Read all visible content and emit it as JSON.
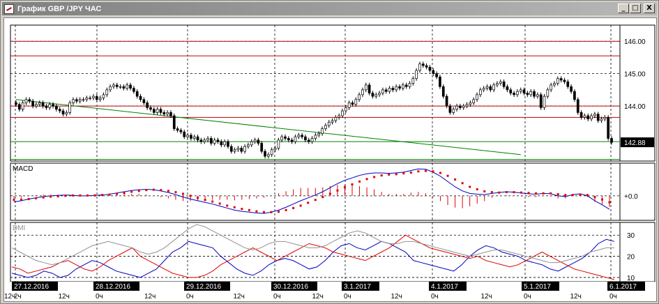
{
  "window": {
    "title": "График GBP /JPY ЧАС",
    "minimize_glyph": "_",
    "maximize_glyph": "□",
    "close_glyph": "X"
  },
  "colors": {
    "bull": "#ffffff",
    "bear": "#000000",
    "hline_red": "#c00000",
    "hline_green": "#008000",
    "trend_green": "#008000",
    "macd_line": "#0000c0",
    "macd_signal": "#e00000",
    "dmi_plus": "#0000c0",
    "dmi_minus": "#e00000",
    "adx": "#909090"
  },
  "chart_data": [
    {
      "type": "candlestick",
      "title": "",
      "price_axis_labels": [
        "146.00",
        "145.00",
        "144.00"
      ],
      "last_price": "142.88",
      "ylim": [
        142.3,
        146.5
      ],
      "red_levels": [
        146.0,
        145.55,
        144.0,
        143.65
      ],
      "green_levels": [
        142.9,
        142.35
      ],
      "trend_line": {
        "from": [
          0,
          144.2
        ],
        "to": [
          150,
          142.5
        ]
      },
      "closes": [
        144.05,
        143.9,
        144.1,
        144.2,
        144.15,
        144.0,
        144.05,
        144.1,
        144.0,
        143.95,
        144.05,
        144.0,
        143.9,
        143.85,
        143.75,
        143.8,
        144.1,
        144.2,
        144.15,
        144.2,
        144.2,
        144.25,
        144.25,
        144.3,
        144.2,
        144.25,
        144.35,
        144.5,
        144.6,
        144.65,
        144.6,
        144.6,
        144.55,
        144.65,
        144.55,
        144.45,
        144.3,
        144.2,
        144.1,
        143.95,
        143.9,
        143.8,
        143.9,
        143.8,
        143.75,
        143.8,
        143.7,
        143.3,
        143.25,
        143.2,
        143.05,
        143.1,
        143.0,
        143.05,
        142.95,
        142.9,
        142.95,
        143.0,
        142.85,
        142.95,
        142.9,
        142.8,
        142.9,
        142.75,
        142.6,
        142.65,
        142.7,
        142.6,
        142.75,
        142.8,
        142.9,
        142.95,
        142.85,
        142.6,
        142.45,
        142.5,
        142.65,
        142.7,
        142.95,
        143.05,
        143.0,
        142.95,
        142.9,
        143.05,
        143.1,
        143.05,
        142.95,
        142.9,
        143.0,
        143.1,
        143.15,
        143.3,
        143.4,
        143.5,
        143.55,
        143.65,
        143.7,
        143.85,
        143.95,
        144.1,
        144.05,
        144.2,
        144.35,
        144.5,
        144.65,
        144.4,
        144.3,
        144.35,
        144.4,
        144.5,
        144.45,
        144.55,
        144.5,
        144.6,
        144.55,
        144.65,
        144.6,
        144.7,
        144.85,
        145.1,
        145.3,
        145.25,
        145.2,
        145.1,
        145.0,
        144.9,
        144.6,
        144.3,
        144.0,
        143.8,
        143.9,
        144.0,
        143.95,
        144.0,
        144.05,
        144.1,
        144.2,
        144.35,
        144.5,
        144.55,
        144.6,
        144.5,
        144.65,
        144.7,
        144.75,
        144.6,
        144.5,
        144.4,
        144.35,
        144.45,
        144.5,
        144.4,
        144.35,
        144.45,
        144.3,
        144.35,
        143.95,
        144.3,
        144.5,
        144.65,
        144.7,
        144.85,
        144.8,
        144.75,
        144.6,
        144.45,
        144.2,
        143.8,
        143.65,
        143.7,
        143.6,
        143.7,
        143.75,
        143.55,
        143.6,
        143.65,
        143.0,
        142.88
      ]
    },
    {
      "type": "line",
      "title": "MACD",
      "zero_label": "+0.0",
      "series": [
        {
          "values": [
            -0.15,
            -0.12,
            -0.08,
            -0.05,
            -0.02,
            0.0,
            0.01,
            0.02,
            0.01,
            0.0,
            0.0,
            0.01,
            0.02,
            0.04,
            0.07,
            0.1,
            0.13,
            0.15,
            0.16,
            0.15,
            0.12,
            0.08,
            0.03,
            -0.03,
            -0.08,
            -0.12,
            -0.16,
            -0.2,
            -0.25,
            -0.3,
            -0.35,
            -0.38,
            -0.4,
            -0.42,
            -0.43,
            -0.4,
            -0.35,
            -0.28,
            -0.2,
            -0.12,
            -0.05,
            0.02,
            0.1,
            0.2,
            0.3,
            0.38,
            0.44,
            0.5,
            0.54,
            0.56,
            0.56,
            0.55,
            0.56,
            0.58,
            0.62,
            0.66,
            0.65,
            0.58,
            0.48,
            0.35,
            0.22,
            0.12,
            0.06,
            0.04,
            0.03,
            0.06,
            0.08,
            0.1,
            0.09,
            0.07,
            0.05,
            0.04,
            0.06,
            0.05,
            0.0,
            -0.02,
            0.03,
            0.05,
            0.0,
            -0.12,
            -0.22,
            -0.33
          ]
        },
        {
          "values": [
            -0.1,
            -0.09,
            -0.08,
            -0.06,
            -0.04,
            -0.02,
            -0.01,
            0.0,
            0.01,
            0.01,
            0.01,
            0.01,
            0.02,
            0.03,
            0.05,
            0.07,
            0.1,
            0.12,
            0.14,
            0.15,
            0.14,
            0.12,
            0.09,
            0.05,
            0.0,
            -0.05,
            -0.1,
            -0.14,
            -0.19,
            -0.24,
            -0.28,
            -0.32,
            -0.35,
            -0.38,
            -0.4,
            -0.4,
            -0.39,
            -0.35,
            -0.3,
            -0.24,
            -0.17,
            -0.1,
            -0.03,
            0.05,
            0.13,
            0.21,
            0.28,
            0.35,
            0.41,
            0.46,
            0.5,
            0.52,
            0.53,
            0.55,
            0.57,
            0.6,
            0.61,
            0.6,
            0.56,
            0.49,
            0.4,
            0.31,
            0.22,
            0.16,
            0.11,
            0.09,
            0.08,
            0.09,
            0.09,
            0.08,
            0.07,
            0.06,
            0.06,
            0.06,
            0.04,
            0.02,
            0.02,
            0.03,
            0.02,
            -0.03,
            -0.09,
            -0.16
          ]
        }
      ],
      "ylim": [
        -0.6,
        0.8
      ]
    },
    {
      "type": "line",
      "title": "DMI",
      "y_labels": [
        "30",
        "20",
        "10"
      ],
      "ylim": [
        8,
        36
      ],
      "series": [
        {
          "values": [
            12,
            11,
            10,
            11,
            13,
            12,
            10,
            11,
            14,
            16,
            18,
            17,
            15,
            13,
            12,
            11,
            10,
            12,
            14,
            18,
            22,
            24,
            27,
            26,
            25,
            24,
            20,
            17,
            14,
            12,
            11,
            13,
            16,
            18,
            19,
            18,
            16,
            14,
            15,
            18,
            22,
            25,
            26,
            24,
            23,
            25,
            27,
            26,
            24,
            22,
            18,
            17,
            16,
            15,
            14,
            13,
            16,
            20,
            23,
            25,
            24,
            22,
            21,
            20,
            18,
            17,
            16,
            14,
            13,
            15,
            17,
            19,
            22,
            26,
            28,
            27
          ]
        },
        {
          "values": [
            15,
            14,
            12,
            13,
            14,
            15,
            17,
            18,
            16,
            14,
            13,
            15,
            18,
            20,
            22,
            24,
            20,
            18,
            16,
            14,
            12,
            11,
            10,
            10,
            11,
            13,
            16,
            18,
            20,
            22,
            24,
            22,
            20,
            18,
            20,
            22,
            24,
            26,
            25,
            24,
            22,
            21,
            20,
            19,
            18,
            20,
            22,
            24,
            27,
            30,
            28,
            26,
            24,
            23,
            22,
            21,
            20,
            19,
            20,
            18,
            17,
            16,
            15,
            16,
            18,
            20,
            22,
            20,
            18,
            16,
            14,
            13,
            12,
            11,
            10,
            9
          ]
        },
        {
          "values": [
            24,
            22,
            20,
            18,
            17,
            16,
            17,
            19,
            21,
            23,
            25,
            26,
            27,
            26,
            25,
            24,
            22,
            21,
            22,
            24,
            27,
            30,
            33,
            35,
            34,
            32,
            30,
            28,
            26,
            24,
            23,
            24,
            26,
            27,
            27,
            26,
            25,
            24,
            24,
            25,
            27,
            29,
            31,
            32,
            31,
            29,
            27,
            26,
            26,
            27,
            27,
            26,
            25,
            24,
            23,
            22,
            21,
            20,
            21,
            22,
            23,
            23,
            22,
            21,
            20,
            19,
            18,
            17,
            17,
            18,
            19,
            20,
            22,
            23,
            24,
            24
          ]
        }
      ]
    }
  ],
  "time_axis": {
    "date_labels": [
      "27.12.2016",
      "28.12.2016",
      "29.12.2016",
      "30.12.2016",
      "3.1.2017",
      "4.1.2017",
      "5.1.2017",
      "6.1.2017"
    ],
    "hour_labels": [
      "2ч",
      "12ч",
      "0ч",
      "12ч",
      "0ч",
      "12ч",
      "0ч",
      "12ч",
      "0ч",
      "12ч",
      "0ч",
      "12ч",
      "0ч",
      "12ч",
      "0ч",
      "12ч"
    ]
  }
}
